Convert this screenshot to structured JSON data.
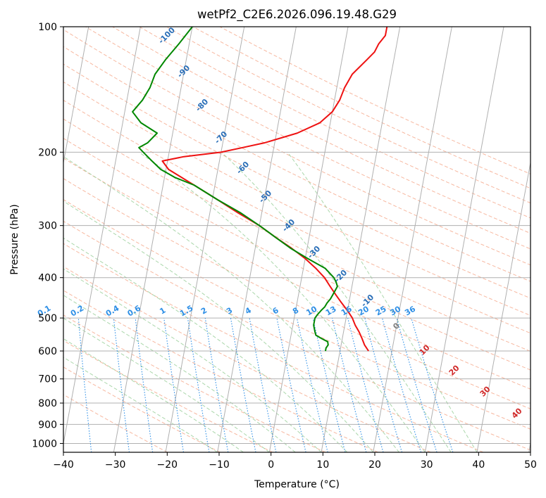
{
  "chart_data": {
    "type": "skew-t",
    "title": "wetPf2_C2E6.2026.096.19.48.G29",
    "xlabel": "Temperature (°C)",
    "ylabel": "Pressure (hPa)",
    "xlim": [
      -40,
      50
    ],
    "ylim": [
      1050,
      100
    ],
    "x_ticks": [
      "−40",
      "−30",
      "−20",
      "−10",
      "0",
      "10",
      "20",
      "30",
      "40",
      "50"
    ],
    "x_tick_values": [
      -40,
      -30,
      -20,
      -10,
      0,
      10,
      20,
      30,
      40,
      50
    ],
    "y_ticks": [
      "100",
      "200",
      "300",
      "400",
      "500",
      "600",
      "700",
      "800",
      "900",
      "1000"
    ],
    "y_tick_values": [
      100,
      200,
      300,
      400,
      500,
      600,
      700,
      800,
      900,
      1000
    ],
    "grid": true,
    "colors": {
      "temperature": "#ee1111",
      "dewpoint": "#008800",
      "isotherm_label": "#2b6fb8",
      "mixing_ratio": "#2e8fe6",
      "dry_adiabat": "#f4a080",
      "moist_adiabat": "#8fc98f",
      "isobar": "#b0b0b0",
      "isotherm_line": "#b0b0b0",
      "temp_label": "#d02828",
      "zero_label": "#808080"
    },
    "series": [
      {
        "name": "temperature",
        "pressure": [
          600,
          580,
          560,
          540,
          520,
          500,
          480,
          460,
          440,
          420,
          400,
          380,
          360,
          340,
          320,
          300,
          280,
          260,
          240,
          220,
          210,
          205,
          200,
          195,
          190,
          180,
          170,
          160,
          150,
          140,
          130,
          120,
          115,
          110,
          105,
          100
        ],
        "values": [
          15.5,
          14.5,
          13.8,
          13,
          12,
          11.2,
          10,
          8.6,
          7.2,
          5.8,
          4.4,
          2.4,
          0,
          -3,
          -6.5,
          -10,
          -14.5,
          -19,
          -24,
          -29.5,
          -31,
          -27,
          -20,
          -16,
          -12,
          -6,
          -2,
          0,
          1,
          1.5,
          2.5,
          4.8,
          6,
          6.5,
          7.5,
          7.5
        ]
      },
      {
        "name": "dewpoint",
        "pressure": [
          600,
          590,
          580,
          570,
          560,
          550,
          540,
          520,
          500,
          490,
          480,
          470,
          460,
          450,
          440,
          430,
          420,
          410,
          400,
          380,
          360,
          340,
          320,
          300,
          280,
          260,
          240,
          230,
          220,
          210,
          200,
          195,
          190,
          180,
          170,
          160,
          150,
          140,
          130,
          120,
          110,
          100
        ],
        "values": [
          7.2,
          7.2,
          7.5,
          7.3,
          6,
          4.8,
          4.5,
          4,
          4,
          4.4,
          4.9,
          5.5,
          5.8,
          6.3,
          6.6,
          6.9,
          7.2,
          6.8,
          6.2,
          4.2,
          0.5,
          -3.2,
          -6.5,
          -10,
          -14,
          -19,
          -24,
          -28,
          -31,
          -33,
          -35,
          -36,
          -34.5,
          -33,
          -36.5,
          -38.5,
          -37,
          -36,
          -35.5,
          -34,
          -32,
          -30
        ]
      }
    ],
    "isotherm_labels": [
      "-100",
      "-90",
      "-80",
      "-70",
      "-60",
      "-50",
      "-40",
      "-30",
      "-20",
      "-10"
    ],
    "isotherm_label_values": [
      -100,
      -90,
      -80,
      -70,
      -60,
      -50,
      -40,
      -30,
      -20,
      -10
    ],
    "mixing_ratio_labels": [
      "0.1",
      "0.2",
      "0.4",
      "0.6",
      "1",
      "1.5",
      "2",
      "3",
      "4",
      "6",
      "8",
      "10",
      "13",
      "16",
      "20",
      "25",
      "30",
      "36"
    ],
    "mixing_ratio_values": [
      0.1,
      0.2,
      0.4,
      0.6,
      1,
      1.5,
      2,
      3,
      4,
      6,
      8,
      10,
      13,
      16,
      20,
      25,
      30,
      36
    ],
    "temp_labels": [
      "0",
      "10",
      "20",
      "30",
      "40"
    ],
    "temp_label_values": [
      0,
      10,
      20,
      30,
      40
    ]
  }
}
